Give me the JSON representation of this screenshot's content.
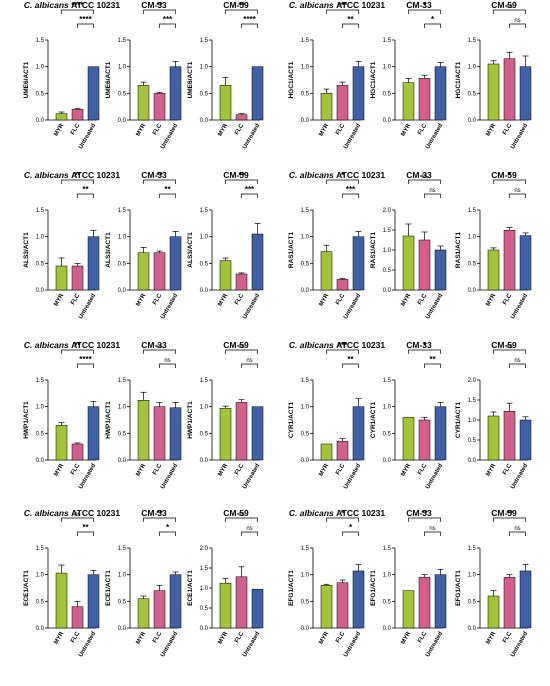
{
  "colors": {
    "MYR": "#a3c33b",
    "FLC": "#d35f8d",
    "Untreated": "#3f5fa7"
  },
  "chart_data": [
    {
      "type": "bar",
      "title": "C. albicans ATCC 10231",
      "ylabel": "UME6/ACT1",
      "categories": [
        "MYR",
        "FLC",
        "Untreated"
      ],
      "values": [
        0.12,
        0.2,
        1.0
      ],
      "errors": [
        0.03,
        0.02,
        0.0
      ],
      "ylim": [
        0,
        1.5
      ],
      "yticks": [
        "0.0",
        "0.5",
        "1.0",
        "1.5"
      ],
      "significance": [
        {
          "label": "****",
          "from": 0,
          "to": 2
        },
        {
          "label": "****",
          "from": 1,
          "to": 2
        }
      ]
    },
    {
      "type": "bar",
      "title": "CM-33",
      "ylabel": "UME6/ACT1",
      "categories": [
        "MYR",
        "FLC",
        "Untreated"
      ],
      "values": [
        0.65,
        0.5,
        1.0
      ],
      "errors": [
        0.06,
        0.02,
        0.1
      ],
      "ylim": [
        0,
        1.5
      ],
      "yticks": [
        "0.0",
        "0.5",
        "1.0",
        "1.5"
      ],
      "significance": [
        {
          "label": "**",
          "from": 0,
          "to": 2
        },
        {
          "label": "***",
          "from": 1,
          "to": 2
        }
      ]
    },
    {
      "type": "bar",
      "title": "CM-59",
      "ylabel": "UME6/ACT1",
      "categories": [
        "MYR",
        "FLC",
        "Untreated"
      ],
      "values": [
        0.65,
        0.1,
        1.0
      ],
      "errors": [
        0.15,
        0.02,
        0.0
      ],
      "ylim": [
        0,
        1.5
      ],
      "yticks": [
        "0.0",
        "0.5",
        "1.0",
        "1.5"
      ],
      "significance": [
        {
          "label": "**",
          "from": 0,
          "to": 2
        },
        {
          "label": "****",
          "from": 1,
          "to": 2
        }
      ]
    },
    {
      "type": "bar",
      "title": "C. albicans ATCC 10231",
      "ylabel": "HGC1/ACT1",
      "categories": [
        "MYR",
        "FLC",
        "Untreated"
      ],
      "values": [
        0.5,
        0.65,
        1.0
      ],
      "errors": [
        0.08,
        0.06,
        0.1
      ],
      "ylim": [
        0,
        1.5
      ],
      "yticks": [
        "0.0",
        "0.5",
        "1.0",
        "1.5"
      ],
      "significance": [
        {
          "label": "***",
          "from": 0,
          "to": 2
        },
        {
          "label": "**",
          "from": 1,
          "to": 2
        }
      ]
    },
    {
      "type": "bar",
      "title": "CM-33",
      "ylabel": "HGC1/ACT1",
      "categories": [
        "MYR",
        "FLC",
        "Untreated"
      ],
      "values": [
        0.7,
        0.78,
        1.0
      ],
      "errors": [
        0.08,
        0.06,
        0.08
      ],
      "ylim": [
        0,
        1.5
      ],
      "yticks": [
        "0.0",
        "0.5",
        "1.0",
        "1.5"
      ],
      "significance": [
        {
          "label": "*",
          "from": 0,
          "to": 2
        },
        {
          "label": "*",
          "from": 1,
          "to": 2
        }
      ]
    },
    {
      "type": "bar",
      "title": "CM-59",
      "ylabel": "HGC1/ACT1",
      "categories": [
        "MYR",
        "FLC",
        "Untreated"
      ],
      "values": [
        1.05,
        1.15,
        1.0
      ],
      "errors": [
        0.06,
        0.12,
        0.2
      ],
      "ylim": [
        0,
        1.5
      ],
      "yticks": [
        "0.0",
        "0.5",
        "1.0",
        "1.5"
      ],
      "significance": [
        {
          "label": "ns",
          "from": 0,
          "to": 2
        },
        {
          "label": "ns",
          "from": 1,
          "to": 2
        }
      ]
    },
    {
      "type": "bar",
      "title": "C. albicans ATCC 10231",
      "ylabel": "ALS3/ACT1",
      "categories": [
        "MYR",
        "FLC",
        "Untreated"
      ],
      "values": [
        0.45,
        0.45,
        1.0
      ],
      "errors": [
        0.15,
        0.05,
        0.12
      ],
      "ylim": [
        0,
        1.5
      ],
      "yticks": [
        "0.0",
        "0.5",
        "1.0",
        "1.5"
      ],
      "significance": [
        {
          "label": "**",
          "from": 0,
          "to": 2
        },
        {
          "label": "**",
          "from": 1,
          "to": 2
        }
      ]
    },
    {
      "type": "bar",
      "title": "CM-33",
      "ylabel": "ALS3/ACT1",
      "categories": [
        "MYR",
        "FLC",
        "Untreated"
      ],
      "values": [
        0.7,
        0.7,
        1.0
      ],
      "errors": [
        0.1,
        0.03,
        0.1
      ],
      "ylim": [
        0,
        1.5
      ],
      "yticks": [
        "0.0",
        "0.5",
        "1.0",
        "1.5"
      ],
      "significance": [
        {
          "label": "**",
          "from": 0,
          "to": 2
        },
        {
          "label": "**",
          "from": 1,
          "to": 2
        }
      ]
    },
    {
      "type": "bar",
      "title": "CM-59",
      "ylabel": "ALS3/ACT1",
      "categories": [
        "MYR",
        "FLC",
        "Untreated"
      ],
      "values": [
        0.55,
        0.3,
        1.05
      ],
      "errors": [
        0.05,
        0.02,
        0.2
      ],
      "ylim": [
        0,
        1.5
      ],
      "yticks": [
        "0.0",
        "0.5",
        "1.0",
        "1.5"
      ],
      "significance": [
        {
          "label": "**",
          "from": 0,
          "to": 2
        },
        {
          "label": "***",
          "from": 1,
          "to": 2
        }
      ]
    },
    {
      "type": "bar",
      "title": "C. albicans ATCC 10231",
      "ylabel": "RAS1/ACT1",
      "categories": [
        "MYR",
        "FLC",
        "Untreated"
      ],
      "values": [
        0.72,
        0.2,
        1.0
      ],
      "errors": [
        0.12,
        0.02,
        0.1
      ],
      "ylim": [
        0,
        1.5
      ],
      "yticks": [
        "0.0",
        "0.5",
        "1.0",
        "1.5"
      ],
      "significance": [
        {
          "label": "*",
          "from": 0,
          "to": 2
        },
        {
          "label": "***",
          "from": 1,
          "to": 2
        }
      ]
    },
    {
      "type": "bar",
      "title": "CM-33",
      "ylabel": "RAS1/ACT1",
      "categories": [
        "MYR",
        "FLC",
        "Untreated"
      ],
      "values": [
        1.35,
        1.25,
        1.0
      ],
      "errors": [
        0.3,
        0.2,
        0.1
      ],
      "ylim": [
        0,
        2.0
      ],
      "yticks": [
        "0.0",
        "0.5",
        "1.0",
        "1.5",
        "2.0"
      ],
      "significance": [
        {
          "label": "ns",
          "from": 0,
          "to": 2
        },
        {
          "label": "ns",
          "from": 1,
          "to": 2
        }
      ]
    },
    {
      "type": "bar",
      "title": "CM-59",
      "ylabel": "RAS1/ACT1",
      "categories": [
        "MYR",
        "FLC",
        "Untreated"
      ],
      "values": [
        0.75,
        1.12,
        1.02
      ],
      "errors": [
        0.04,
        0.05,
        0.05
      ],
      "ylim": [
        0,
        1.5
      ],
      "yticks": [
        "0.0",
        "0.5",
        "1.0",
        "1.5"
      ],
      "significance": [
        {
          "label": "*",
          "from": 0,
          "to": 2
        },
        {
          "label": "ns",
          "from": 1,
          "to": 2
        }
      ]
    },
    {
      "type": "bar",
      "title": "C. albicans ATCC 10231",
      "ylabel": "HWP1/ACT1",
      "categories": [
        "MYR",
        "FLC",
        "Untreated"
      ],
      "values": [
        0.65,
        0.3,
        1.0
      ],
      "errors": [
        0.05,
        0.02,
        0.1
      ],
      "ylim": [
        0,
        1.5
      ],
      "yticks": [
        "0.0",
        "0.5",
        "1.0",
        "1.5"
      ],
      "significance": [
        {
          "label": "**",
          "from": 0,
          "to": 2
        },
        {
          "label": "****",
          "from": 1,
          "to": 2
        }
      ]
    },
    {
      "type": "bar",
      "title": "CM-33",
      "ylabel": "HWP1/ACT1",
      "categories": [
        "MYR",
        "FLC",
        "Untreated"
      ],
      "values": [
        1.12,
        1.0,
        0.98
      ],
      "errors": [
        0.15,
        0.08,
        0.1
      ],
      "ylim": [
        0,
        1.5
      ],
      "yticks": [
        "0.0",
        "0.5",
        "1.0",
        "1.5"
      ],
      "significance": [
        {
          "label": "ns",
          "from": 0,
          "to": 2
        },
        {
          "label": "ns",
          "from": 1,
          "to": 2
        }
      ]
    },
    {
      "type": "bar",
      "title": "CM-59",
      "ylabel": "HWP1/ACT1",
      "categories": [
        "MYR",
        "FLC",
        "Untreated"
      ],
      "values": [
        0.97,
        1.08,
        1.0
      ],
      "errors": [
        0.04,
        0.05,
        0.0
      ],
      "ylim": [
        0,
        1.5
      ],
      "yticks": [
        "0.0",
        "0.5",
        "1.0",
        "1.5"
      ],
      "significance": [
        {
          "label": "ns",
          "from": 0,
          "to": 2
        },
        {
          "label": "ns",
          "from": 1,
          "to": 2
        }
      ]
    },
    {
      "type": "bar",
      "title": "C. albicans ATCC 10231",
      "ylabel": "CYR1/ACT1",
      "categories": [
        "MYR",
        "FLC",
        "Untreated"
      ],
      "values": [
        0.3,
        0.35,
        1.0
      ],
      "errors": [
        0.0,
        0.05,
        0.15
      ],
      "ylim": [
        0,
        1.5
      ],
      "yticks": [
        "0.0",
        "0.5",
        "1.0",
        "1.5"
      ],
      "significance": [
        {
          "label": "***",
          "from": 0,
          "to": 2
        },
        {
          "label": "**",
          "from": 1,
          "to": 2
        }
      ]
    },
    {
      "type": "bar",
      "title": "CM-33",
      "ylabel": "CYR1/ACT1",
      "categories": [
        "MYR",
        "FLC",
        "Untreated"
      ],
      "values": [
        0.8,
        0.75,
        1.0
      ],
      "errors": [
        0.0,
        0.05,
        0.08
      ],
      "ylim": [
        0,
        1.5
      ],
      "yticks": [
        "0.0",
        "0.5",
        "1.0",
        "1.5"
      ],
      "significance": [
        {
          "label": "*",
          "from": 0,
          "to": 2
        },
        {
          "label": "**",
          "from": 1,
          "to": 2
        }
      ]
    },
    {
      "type": "bar",
      "title": "CM-59",
      "ylabel": "CYR1/ACT1",
      "categories": [
        "MYR",
        "FLC",
        "Untreated"
      ],
      "values": [
        1.1,
        1.22,
        1.0
      ],
      "errors": [
        0.1,
        0.2,
        0.08
      ],
      "ylim": [
        0,
        2.0
      ],
      "yticks": [
        "0.0",
        "0.5",
        "1.0",
        "1.5",
        "2.0"
      ],
      "significance": [
        {
          "label": "ns",
          "from": 0,
          "to": 2
        },
        {
          "label": "ns",
          "from": 1,
          "to": 2
        }
      ]
    },
    {
      "type": "bar",
      "title": "C. albicans ATCC 10231",
      "ylabel": "ECE1/ACT1",
      "categories": [
        "MYR",
        "FLC",
        "Untreated"
      ],
      "values": [
        1.03,
        0.4,
        1.0
      ],
      "errors": [
        0.15,
        0.1,
        0.08
      ],
      "ylim": [
        0,
        1.5
      ],
      "yticks": [
        "0.0",
        "0.5",
        "1.0",
        "1.5"
      ],
      "significance": [
        {
          "label": "ns",
          "from": 0,
          "to": 2
        },
        {
          "label": "**",
          "from": 1,
          "to": 2
        }
      ]
    },
    {
      "type": "bar",
      "title": "CM-33",
      "ylabel": "ECE1/ACT1",
      "categories": [
        "MYR",
        "FLC",
        "Untreated"
      ],
      "values": [
        0.55,
        0.7,
        1.0
      ],
      "errors": [
        0.05,
        0.1,
        0.05
      ],
      "ylim": [
        0,
        1.5
      ],
      "yticks": [
        "0.0",
        "0.5",
        "1.0",
        "1.5"
      ],
      "significance": [
        {
          "label": "**",
          "from": 0,
          "to": 2
        },
        {
          "label": "*",
          "from": 1,
          "to": 2
        }
      ]
    },
    {
      "type": "bar",
      "title": "CM-59",
      "ylabel": "ECE1/ACT1",
      "categories": [
        "MYR",
        "FLC",
        "Untreated"
      ],
      "values": [
        1.12,
        1.28,
        0.97
      ],
      "errors": [
        0.12,
        0.25,
        0.0
      ],
      "ylim": [
        0,
        2.0
      ],
      "yticks": [
        "0.0",
        "0.5",
        "1.0",
        "1.5",
        "2.0"
      ],
      "significance": [
        {
          "label": "ns",
          "from": 0,
          "to": 2
        },
        {
          "label": "ns",
          "from": 1,
          "to": 2
        }
      ]
    },
    {
      "type": "bar",
      "title": "C. albicans ATCC 10231",
      "ylabel": "EFG1/ACT1",
      "categories": [
        "MYR",
        "FLC",
        "Untreated"
      ],
      "values": [
        0.8,
        0.85,
        1.07
      ],
      "errors": [
        0.02,
        0.05,
        0.12
      ],
      "ylim": [
        0,
        1.5
      ],
      "yticks": [
        "0.0",
        "0.5",
        "1.0",
        "1.5"
      ],
      "significance": [
        {
          "label": "*",
          "from": 0,
          "to": 2
        },
        {
          "label": "*",
          "from": 1,
          "to": 2
        }
      ]
    },
    {
      "type": "bar",
      "title": "CM-33",
      "ylabel": "EFG1/ACT1",
      "categories": [
        "MYR",
        "FLC",
        "Untreated"
      ],
      "values": [
        0.7,
        0.95,
        1.0
      ],
      "errors": [
        0.0,
        0.05,
        0.1
      ],
      "ylim": [
        0,
        1.5
      ],
      "yticks": [
        "0.0",
        "0.5",
        "1.0",
        "1.5"
      ],
      "significance": [
        {
          "label": "**",
          "from": 0,
          "to": 2
        },
        {
          "label": "ns",
          "from": 1,
          "to": 2
        }
      ]
    },
    {
      "type": "bar",
      "title": "CM-59",
      "ylabel": "EFG1/ACT1",
      "categories": [
        "MYR",
        "FLC",
        "Untreated"
      ],
      "values": [
        0.6,
        0.95,
        1.07
      ],
      "errors": [
        0.1,
        0.05,
        0.12
      ],
      "ylim": [
        0,
        1.5
      ],
      "yticks": [
        "0.0",
        "0.5",
        "1.0",
        "1.5"
      ],
      "significance": [
        {
          "label": "**",
          "from": 0,
          "to": 2
        },
        {
          "label": "ns",
          "from": 1,
          "to": 2
        }
      ]
    }
  ]
}
